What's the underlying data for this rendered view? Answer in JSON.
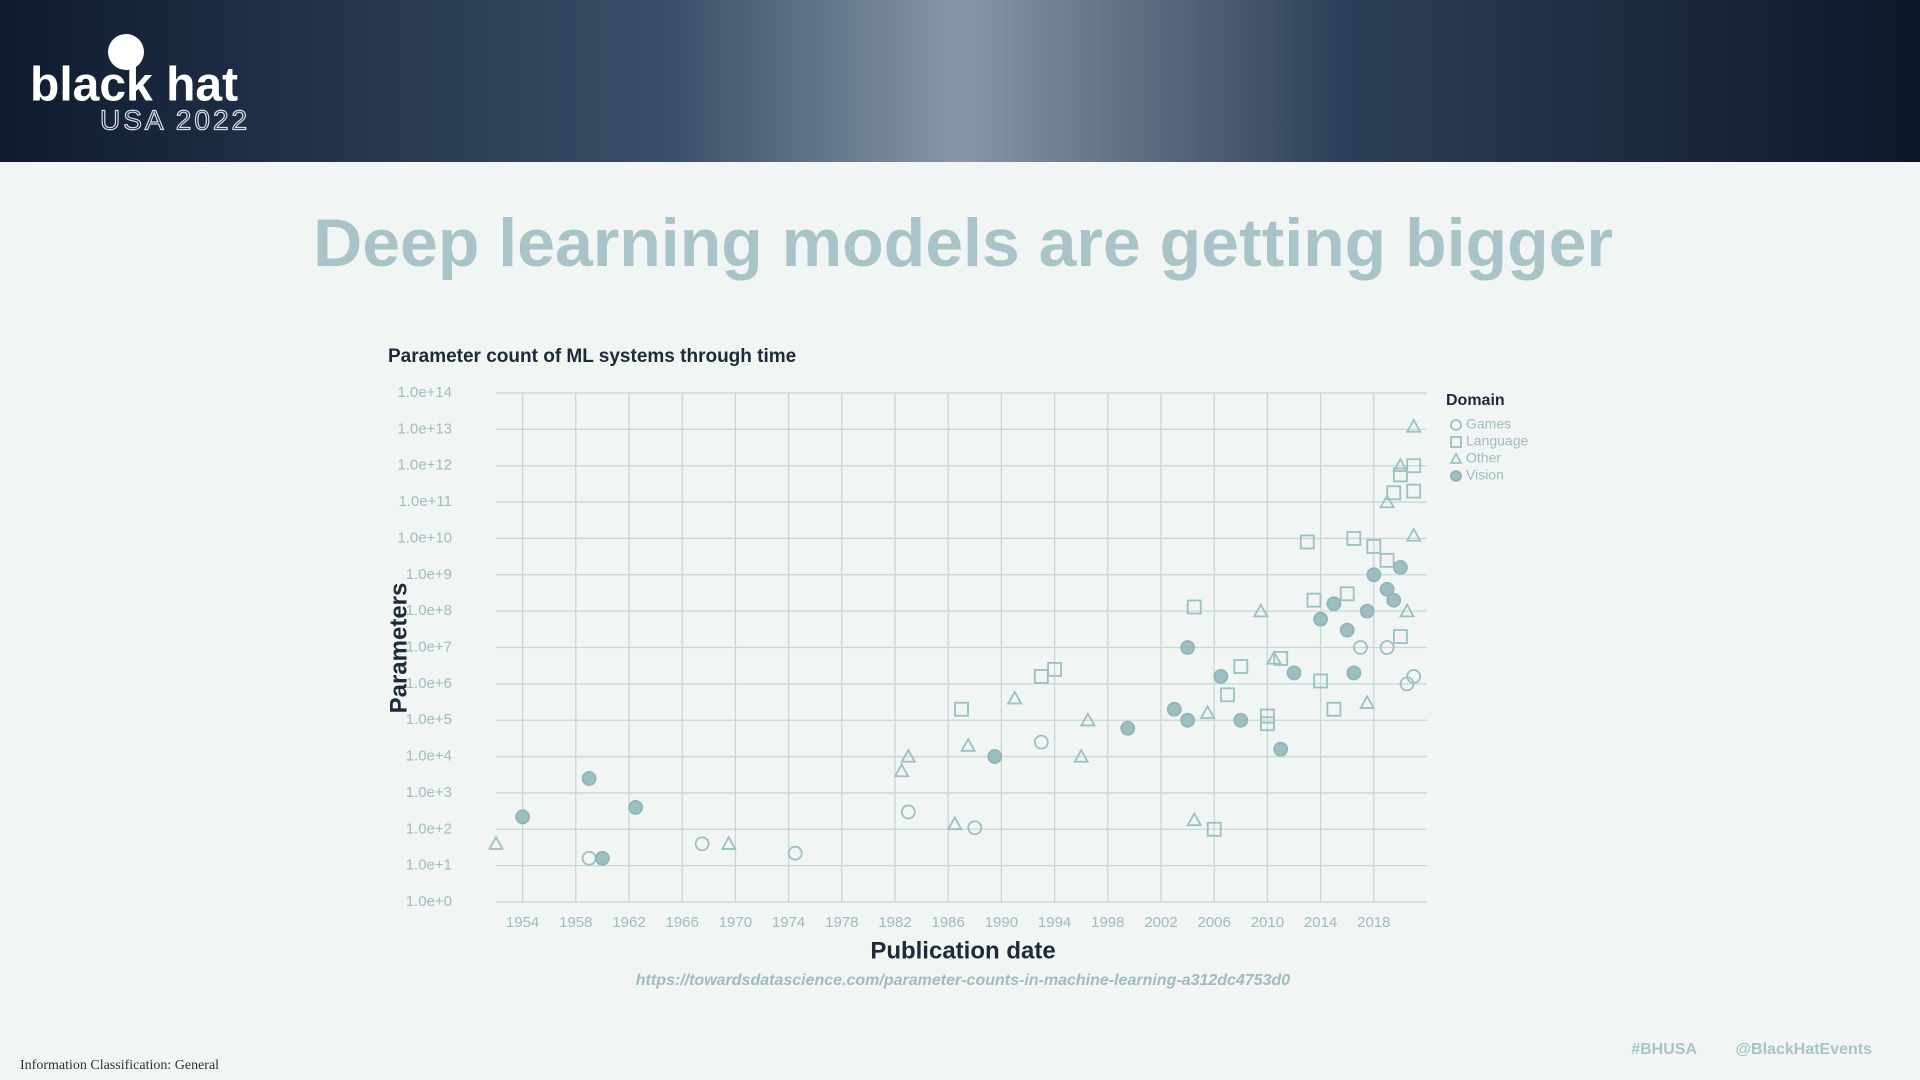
{
  "header": {
    "logo": "black hat",
    "event": "USA 2022"
  },
  "slide_title": "Deep learning models are getting bigger",
  "chart_data": {
    "type": "scatter",
    "title": "Parameter count of ML systems through time",
    "x_label": "Publication date",
    "y_label": "Parameters",
    "legend_title": "Domain",
    "legend_position": "right",
    "source": "https://towardsdatascience.com/parameter-counts-in-machine-learning-a312dc4753d0",
    "yscale": "log",
    "grid": true,
    "xlim": [
      1952,
      2022
    ],
    "xticks": [
      1954,
      1958,
      1962,
      1966,
      1970,
      1974,
      1978,
      1982,
      1986,
      1990,
      1994,
      1998,
      2002,
      2006,
      2010,
      2014,
      2018
    ],
    "ylim": [
      1,
      100000000000000
    ],
    "yticks": [
      {
        "value": 1,
        "label": "1.0e+0"
      },
      {
        "value": 10,
        "label": "1.0e+1"
      },
      {
        "value": 100,
        "label": "1.0e+2"
      },
      {
        "value": 1000,
        "label": "1.0e+3"
      },
      {
        "value": 10000,
        "label": "1.0e+4"
      },
      {
        "value": 100000,
        "label": "1.0e+5"
      },
      {
        "value": 1000000,
        "label": "1.0e+6"
      },
      {
        "value": 10000000,
        "label": "1.0e+7"
      },
      {
        "value": 100000000,
        "label": "1.0e+8"
      },
      {
        "value": 1000000000,
        "label": "1.0e+9"
      },
      {
        "value": 10000000000,
        "label": "1.0e+10"
      },
      {
        "value": 100000000000,
        "label": "1.0e+11"
      },
      {
        "value": 1000000000000,
        "label": "1.0e+12"
      },
      {
        "value": 10000000000000,
        "label": "1.0e+13"
      },
      {
        "value": 100000000000000,
        "label": "1.0e+14"
      }
    ],
    "series": [
      {
        "name": "Games",
        "color": "#9cc0c3",
        "marker": "circle-open",
        "x": [
          1959,
          1967.5,
          1974.5,
          1983,
          1988,
          1993,
          2020.5,
          2021,
          2019,
          2017
        ],
        "values": [
          16,
          40,
          22,
          300,
          110,
          25000,
          1000000,
          1600000,
          10000000,
          10000000
        ]
      },
      {
        "name": "Language",
        "color": "#9cc0c3",
        "marker": "square-open",
        "x": [
          1987,
          1993,
          1994,
          2004.5,
          2006,
          2007,
          2008,
          2010,
          2010,
          2011,
          2013,
          2013.5,
          2014,
          2015,
          2016,
          2016.5,
          2018,
          2019,
          2019.5,
          2020,
          2021,
          2021,
          2020
        ],
        "values": [
          200000,
          1600000,
          2500000,
          130000000,
          100,
          500000,
          3000000,
          130000,
          80000,
          5000000,
          8000000000,
          200000000,
          1200000,
          200000,
          300000000,
          10000000000,
          6000000000,
          2500000000,
          180000000000,
          560000000000,
          200000000000,
          1000000000000,
          20000000
        ]
      },
      {
        "name": "Other",
        "color": "#9cc0c3",
        "marker": "triangle-open",
        "x": [
          1952,
          1969.5,
          1982.5,
          1983,
          1986.5,
          1987.5,
          1991,
          1996,
          1996.5,
          2004.5,
          2005.5,
          2009.5,
          2010.5,
          2017.5,
          2019,
          2020,
          2021,
          2021,
          2020.5
        ],
        "values": [
          40,
          40,
          4000,
          10000,
          140,
          20000,
          400000,
          10000,
          100000,
          180,
          160000,
          100000000,
          5000000,
          300000,
          100000000000,
          1000000000000,
          12000000000000,
          12000000000,
          100000000
        ]
      },
      {
        "name": "Vision",
        "color": "#8fb5b9",
        "marker": "circle-filled",
        "x": [
          1954,
          1959,
          1960,
          1962.5,
          1989.5,
          1999.5,
          2003,
          2004,
          2004,
          2006.5,
          2008,
          2011,
          2012,
          2014,
          2015,
          2016,
          2016.5,
          2017.5,
          2018,
          2019,
          2019.5,
          2020
        ],
        "values": [
          220,
          2500,
          16,
          400,
          10000,
          60000,
          200000,
          100000,
          10000000,
          1600000,
          100000,
          16000,
          2000000,
          60000000,
          160000000,
          30000000,
          2000000,
          100000000,
          1000000000,
          400000000,
          200000000,
          1600000000
        ]
      }
    ]
  },
  "footer": {
    "classification": "Information Classification: General",
    "hashtag": "#BHUSA",
    "handle": "@BlackHatEvents"
  }
}
